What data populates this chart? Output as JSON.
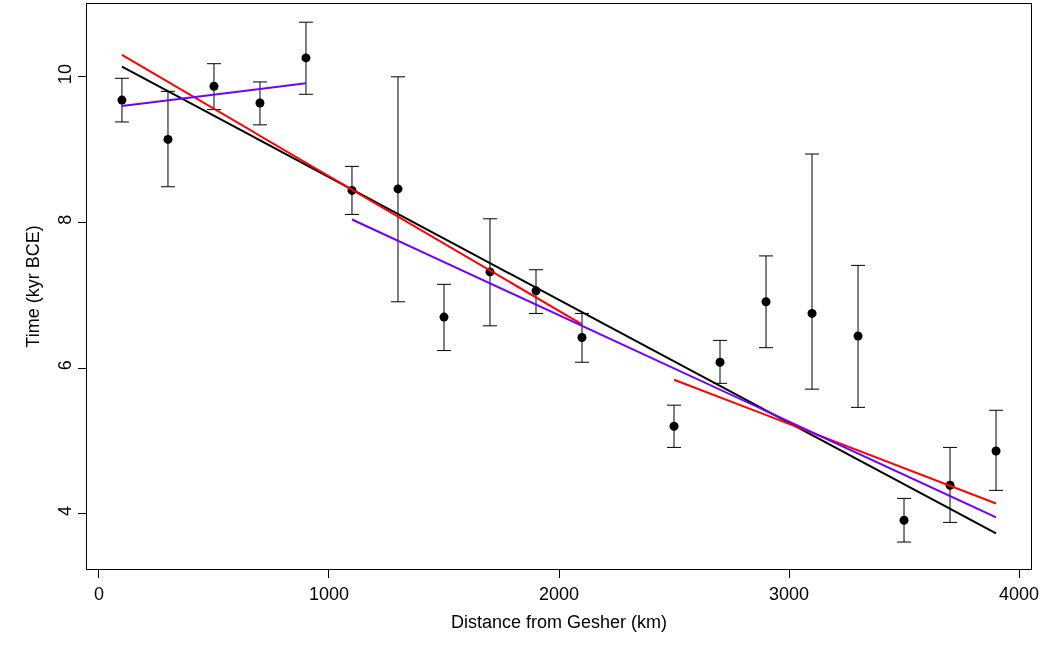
{
  "chart_data": {
    "type": "scatter",
    "xlabel": "Distance from Gesher (km)",
    "ylabel": "Time (kyr BCE)",
    "xlim": [
      -52,
      4052
    ],
    "ylim": [
      3.24,
      11.0
    ],
    "xticks": [
      0,
      1000,
      2000,
      3000,
      4000
    ],
    "yticks": [
      4,
      6,
      8,
      10
    ],
    "series": [
      {
        "color": "#000000",
        "marker": "circle",
        "x": [
          100,
          300,
          500,
          700,
          900,
          1100,
          1300,
          1500,
          1700,
          1900,
          2100,
          2500,
          2700,
          2900,
          3100,
          3300,
          3500,
          3700,
          3900
        ],
        "values": [
          9.68,
          9.14,
          9.87,
          9.64,
          10.26,
          8.44,
          8.46,
          6.7,
          7.32,
          7.06,
          6.42,
          5.2,
          6.08,
          6.91,
          6.75,
          6.44,
          3.91,
          4.39,
          4.86
        ],
        "errors": [
          [
            9.38,
            9.98
          ],
          [
            8.49,
            9.8
          ],
          [
            9.55,
            10.18
          ],
          [
            9.34,
            9.93
          ],
          [
            9.76,
            10.75
          ],
          [
            8.11,
            8.77
          ],
          [
            6.91,
            10.0
          ],
          [
            6.24,
            7.15
          ],
          [
            6.58,
            8.05
          ],
          [
            6.75,
            7.35
          ],
          [
            6.08,
            6.75
          ],
          [
            4.91,
            5.49
          ],
          [
            5.79,
            6.38
          ],
          [
            6.28,
            7.54
          ],
          [
            5.71,
            8.94
          ],
          [
            5.46,
            7.41
          ],
          [
            3.61,
            4.21
          ],
          [
            3.88,
            4.91
          ],
          [
            4.32,
            5.42
          ]
        ]
      },
      {
        "type": "line",
        "color": "#000000",
        "x": [
          100,
          3900
        ],
        "values": [
          10.14,
          3.73
        ]
      },
      {
        "type": "line",
        "color": "#ff0000",
        "x": [
          100,
          2100
        ],
        "values": [
          10.3,
          6.6
        ]
      },
      {
        "type": "line",
        "color": "#ff0000",
        "x": [
          2500,
          3900
        ],
        "values": [
          5.84,
          4.14
        ]
      },
      {
        "type": "line",
        "color": "#7000ff",
        "x": [
          100,
          900
        ],
        "values": [
          9.6,
          9.91
        ]
      },
      {
        "type": "line",
        "color": "#7000ff",
        "x": [
          1100,
          3900
        ],
        "values": [
          8.04,
          3.95
        ]
      }
    ]
  }
}
